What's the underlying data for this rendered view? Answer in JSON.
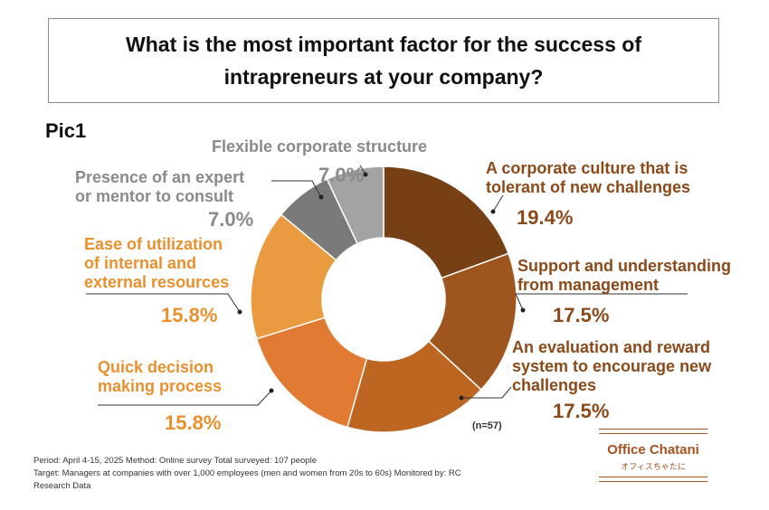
{
  "title": "What is the most important factor for the success of intrapreneurs at your company?",
  "pic_label": "Pic1",
  "chart_data": {
    "type": "pie",
    "donut": true,
    "slices": [
      {
        "label": "A corporate culture that is tolerant of new challenges",
        "value": 19.4,
        "display": "19.4%",
        "color": "#774014"
      },
      {
        "label": "Support and understanding from management",
        "value": 17.5,
        "display": "17.5%",
        "color": "#9e561e"
      },
      {
        "label": "An evaluation and reward system to encourage new challenges",
        "value": 17.5,
        "display": "17.5%",
        "color": "#bd6622"
      },
      {
        "label": "Quick decision making process",
        "value": 15.8,
        "display": "15.8%",
        "color": "#e17b33"
      },
      {
        "label": "Ease of utilization of internal and external resources",
        "value": 15.8,
        "display": "15.8%",
        "color": "#ea9a3f"
      },
      {
        "label": "Presence of an expert or mentor to consult",
        "value": 7.0,
        "display": "7.0%",
        "color": "#7a7a7a"
      },
      {
        "label": "Flexible corporate structure",
        "value": 7.0,
        "display": "7.0%",
        "color": "#a3a3a3"
      }
    ],
    "sample_size": "(n=57)"
  },
  "labels": {
    "culture": [
      "A corporate culture that is",
      "tolerant of new challenges"
    ],
    "support": [
      "Support and understanding",
      "from management"
    ],
    "evaluation": [
      "An evaluation and reward",
      "system to encourage new",
      "challenges"
    ],
    "quick": [
      "Quick decision",
      "making process"
    ],
    "ease": [
      "Ease of utilization",
      "of internal and",
      "external resources"
    ],
    "expert": [
      "Presence of an expert",
      "or mentor to consult"
    ],
    "flexible": [
      "Flexible corporate structure"
    ]
  },
  "footer": {
    "line1": "Period: April 4-15, 2025 Method: Online survey Total surveyed: 107 people",
    "line2": "Target: Managers at companies with over 1,000 employees (men and women from 20s to 60s) Monitored by: RC",
    "line3": "Research Data"
  },
  "logo": {
    "name": "Office Chatani",
    "sub": "オフィスちゃたに"
  },
  "colors": {
    "label_brown": "#8a4a1a",
    "label_orange": "#e8902e",
    "label_gray": "#8a8a8a",
    "logo": "#a5521f"
  }
}
